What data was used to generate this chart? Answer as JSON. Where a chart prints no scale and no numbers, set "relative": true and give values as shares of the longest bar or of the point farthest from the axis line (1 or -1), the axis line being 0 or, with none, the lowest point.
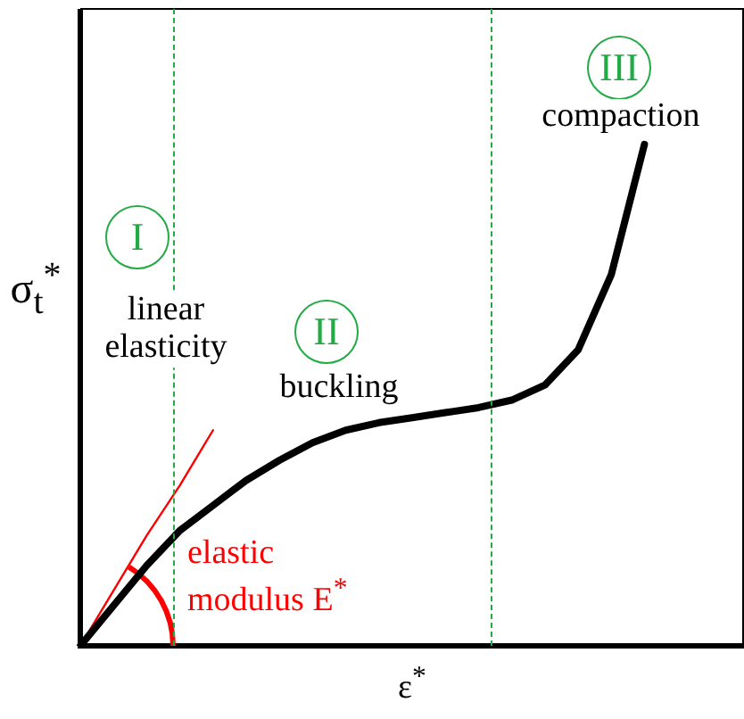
{
  "chart_data": {
    "type": "line",
    "relative": true,
    "xlabel": "ε$^{*}$",
    "ylabel": "σ$_{t}$$^{*}$",
    "legend": false,
    "marker": "none",
    "categories": [
      null,
      null,
      null,
      null,
      null,
      null,
      null,
      null,
      null,
      null,
      null,
      null,
      null,
      null,
      null,
      null,
      null,
      null,
      null,
      null,
      null
    ],
    "series": [
      {
        "color": "#000000",
        "values": [
          0,
          0.08,
          0.16,
          0.23,
          0.28,
          0.33,
          0.37,
          0.405,
          0.43,
          0.445,
          0.455,
          0.465,
          0.475,
          0.49,
          0.52,
          0.59,
          0.74,
          1,
          null,
          null,
          null
        ]
      },
      {
        "name": "elastic modulus E$^{*}$",
        "color": "#ff0000",
        "values": [
          0,
          0.11,
          0.22,
          0.32,
          0.43,
          null,
          null,
          null,
          null,
          null,
          null,
          null,
          null,
          null,
          null,
          null,
          null,
          null,
          null,
          null,
          null
        ]
      }
    ],
    "annotations": [
      "I",
      "linear elasticity",
      "II",
      "buckling",
      "III",
      "compaction"
    ]
  }
}
